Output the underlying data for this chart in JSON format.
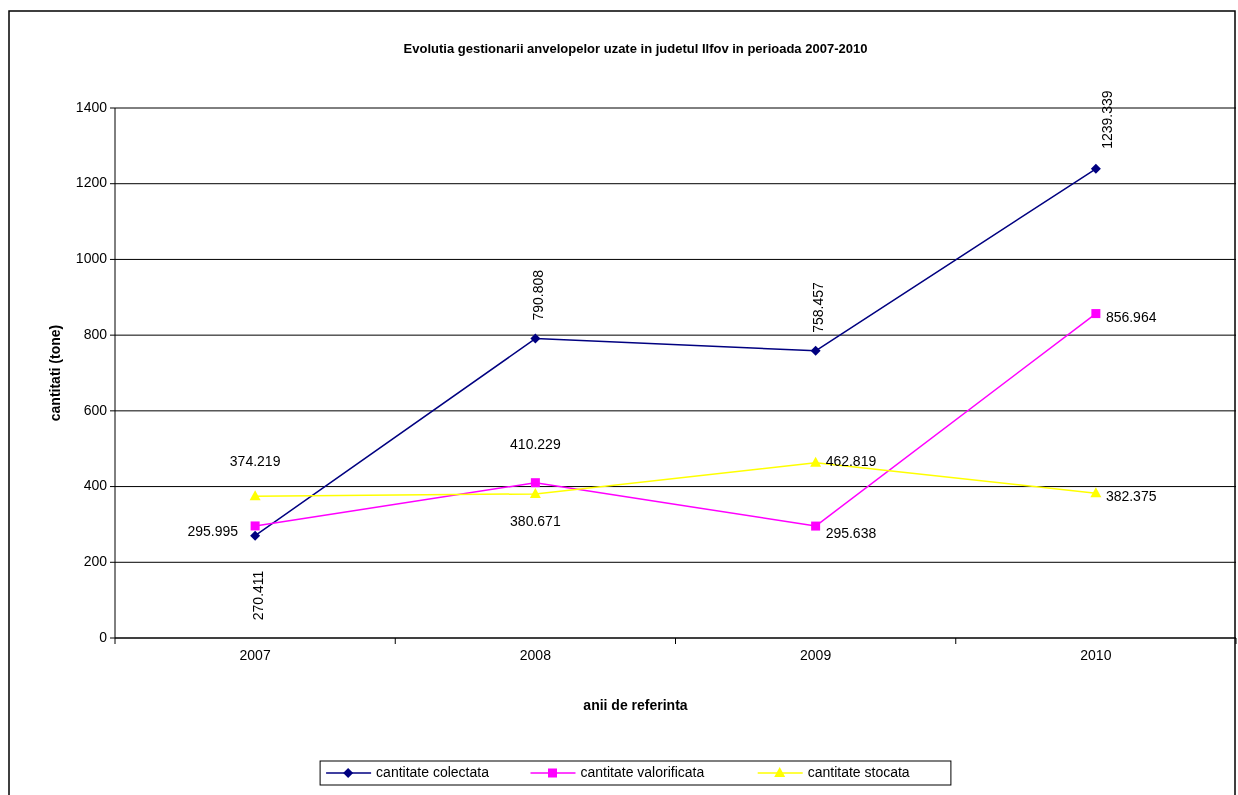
{
  "chart_data": {
    "type": "line",
    "title": "Evolutia gestionarii anvelopelor uzate in judetul Ilfov in perioada 2007-2010",
    "xlabel": "anii de referinta",
    "ylabel": "cantitati (tone)",
    "categories": [
      "2007",
      "2008",
      "2009",
      "2010"
    ],
    "series": [
      {
        "name": "cantitate colectata",
        "color": "#000080",
        "marker": "diamond",
        "values": [
          270.411,
          790.808,
          758.457,
          1239.339
        ]
      },
      {
        "name": "cantitate valorificata",
        "color": "#ff00ff",
        "marker": "square",
        "values": [
          295.995,
          410.229,
          295.638,
          856.964
        ]
      },
      {
        "name": "cantitate stocata",
        "color": "#ffff00",
        "marker": "triangle",
        "values": [
          374.219,
          380.671,
          462.819,
          382.375
        ]
      }
    ],
    "ylim": [
      0,
      1400
    ],
    "yticks": [
      0,
      200,
      400,
      600,
      800,
      1000,
      1200,
      1400
    ],
    "grid": "y",
    "legend": "bottom",
    "data_labels": true
  }
}
